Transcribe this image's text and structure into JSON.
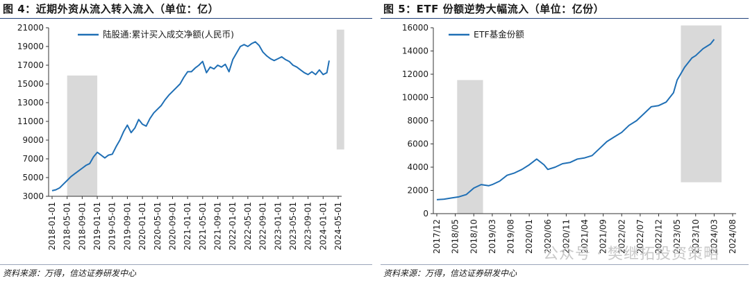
{
  "source_text": "资料来源：万得，信达证券研发中心",
  "watermark": "公众号 · 樊继拓投资策略",
  "charts": [
    {
      "title": "图 4：近期外资从流入转入流入（单位：亿）",
      "chart_data": {
        "type": "line",
        "ylim": [
          3000,
          21000
        ],
        "yticks": [
          3000,
          5000,
          7000,
          9000,
          11000,
          13000,
          15000,
          17000,
          19000,
          21000
        ],
        "x_labels": [
          "2018-01-01",
          "2018-05-01",
          "2018-09-01",
          "2019-01-01",
          "2019-05-01",
          "2019-09-01",
          "2020-01-01",
          "2020-05-01",
          "2020-09-01",
          "2021-01-01",
          "2021-05-01",
          "2021-09-01",
          "2022-01-01",
          "2022-05-01",
          "2022-09-01",
          "2023-01-01",
          "2023-05-01",
          "2023-09-01",
          "2024-01-01",
          "2024-05-01"
        ],
        "legend": "陆股通:累计买入成交净额(人民币)",
        "legend_position": "top-left",
        "series_color": "#1f6fb5",
        "series": [
          {
            "name": "陆股通:累计买入成交净额(人民币)",
            "x": [
              0,
              0.25,
              0.5,
              0.75,
              1,
              1.25,
              1.5,
              1.75,
              2,
              2.25,
              2.5,
              2.75,
              3,
              3.25,
              3.5,
              3.75,
              4,
              4.25,
              4.5,
              4.75,
              5,
              5.25,
              5.5,
              5.75,
              6,
              6.25,
              6.5,
              6.75,
              7,
              7.25,
              7.5,
              7.75,
              8,
              8.25,
              8.5,
              8.75,
              9,
              9.25,
              9.5,
              9.75,
              10,
              10.25,
              10.5,
              10.75,
              11,
              11.25,
              11.5,
              11.75,
              12,
              12.25,
              12.5,
              12.75,
              13,
              13.25,
              13.5,
              13.75,
              14,
              14.25,
              14.5,
              14.75,
              15,
              15.25,
              15.5,
              15.75,
              16,
              16.25,
              16.5,
              16.75,
              17,
              17.25,
              17.5,
              17.75,
              18,
              18.25,
              18.4
            ],
            "y": [
              3600,
              3700,
              3900,
              4300,
              4700,
              5100,
              5400,
              5700,
              6000,
              6300,
              6500,
              7200,
              7700,
              7400,
              7100,
              7400,
              7500,
              8300,
              9000,
              9900,
              10600,
              9800,
              10300,
              11200,
              10700,
              10500,
              11300,
              11900,
              12300,
              12700,
              13300,
              13800,
              14200,
              14600,
              15000,
              15700,
              16300,
              16300,
              16700,
              17000,
              17400,
              16200,
              16800,
              16600,
              17000,
              16800,
              17100,
              16300,
              17600,
              18300,
              19000,
              19200,
              19000,
              19300,
              19500,
              19100,
              18400,
              18000,
              17700,
              17500,
              17700,
              17900,
              17600,
              17400,
              17000,
              16800,
              16500,
              16200,
              16000,
              16300,
              16000,
              16500,
              16000,
              16200,
              17500
            ]
          }
        ],
        "highlight_ranges": [
          {
            "x": [
              1,
              3
            ],
            "y": [
              3000,
              15900
            ]
          },
          {
            "x": [
              18.9,
              19.4
            ],
            "y": [
              8000,
              20800
            ]
          }
        ]
      }
    },
    {
      "title": "图 5：ETF 份额逆势大幅流入（单位：亿份）",
      "chart_data": {
        "type": "line",
        "ylim": [
          0,
          16000
        ],
        "yticks": [
          0,
          2000,
          4000,
          6000,
          8000,
          10000,
          12000,
          14000,
          16000
        ],
        "x_labels": [
          "2017/12",
          "2018/05",
          "2018/10",
          "2019/03",
          "2019/08",
          "2020/01",
          "2020/06",
          "2020/11",
          "2021/04",
          "2021/09",
          "2022/02",
          "2022/07",
          "2022/12",
          "2023/05",
          "2023/10",
          "2024/03",
          "2024/08"
        ],
        "legend": "ETF基金份额",
        "legend_position": "top-left",
        "series_color": "#1f6fb5",
        "series": [
          {
            "name": "ETF基金份额",
            "x": [
              0,
              0.4,
              0.8,
              1.2,
              1.6,
              2,
              2.4,
              2.8,
              3,
              3.4,
              3.8,
              4.2,
              4.6,
              5,
              5.4,
              5.8,
              6,
              6.4,
              6.8,
              7.2,
              7.6,
              8,
              8.4,
              8.8,
              9.2,
              9.6,
              10,
              10.4,
              10.8,
              11.2,
              11.6,
              12,
              12.4,
              12.8,
              13,
              13.4,
              13.8,
              14,
              14.4,
              14.8,
              15
            ],
            "y": [
              1200,
              1250,
              1350,
              1450,
              1650,
              2200,
              2500,
              2400,
              2500,
              2800,
              3300,
              3500,
              3800,
              4200,
              4700,
              4200,
              3800,
              4000,
              4300,
              4400,
              4700,
              4800,
              5000,
              5600,
              6200,
              6600,
              7000,
              7600,
              8000,
              8600,
              9200,
              9300,
              9600,
              10400,
              11500,
              12600,
              13400,
              13600,
              14200,
              14600,
              15000
            ]
          }
        ],
        "highlight_ranges": [
          {
            "x": [
              1.1,
              2.5
            ],
            "y": [
              0,
              11500
            ]
          },
          {
            "x": [
              13.2,
              15.4
            ],
            "y": [
              2700,
              16200
            ]
          }
        ]
      }
    }
  ]
}
